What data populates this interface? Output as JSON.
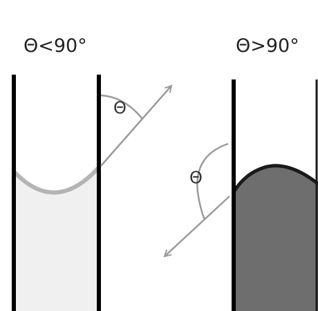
{
  "left_panel": {
    "title": "Θ<90°",
    "angle_label": "Θ",
    "liquid_fill": "#f0f0f0",
    "meniscus_color": "#b4b4b4"
  },
  "right_panel": {
    "title": "Θ>90°",
    "angle_label": "Θ",
    "liquid_fill": "#6e6e6e",
    "meniscus_color": "#1a1a1a"
  },
  "colors": {
    "wall": "#000000",
    "arrow": "#9a9a9a",
    "background": "#ffffff"
  }
}
